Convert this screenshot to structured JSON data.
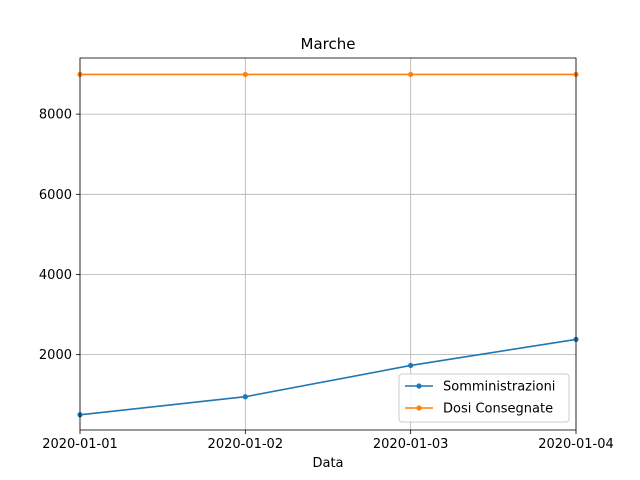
{
  "chart_data": {
    "type": "line",
    "title": "Marche",
    "xlabel": "Data",
    "ylabel": "",
    "x": [
      "2020-01-01",
      "2020-01-02",
      "2020-01-03",
      "2020-01-04"
    ],
    "xlim": [
      "2020-01-01",
      "2020-01-04"
    ],
    "ylim": [
      120,
      9400
    ],
    "yticks": [
      2000,
      4000,
      6000,
      8000
    ],
    "grid": true,
    "legend": "lower-right",
    "series": [
      {
        "name": "Somministrazioni",
        "color": "#1f77b4",
        "values": [
          500,
          950,
          1730,
          2380
        ]
      },
      {
        "name": "Dosi Consegnate",
        "color": "#ff7f0e",
        "values": [
          8990,
          8990,
          8990,
          8990
        ]
      }
    ]
  }
}
